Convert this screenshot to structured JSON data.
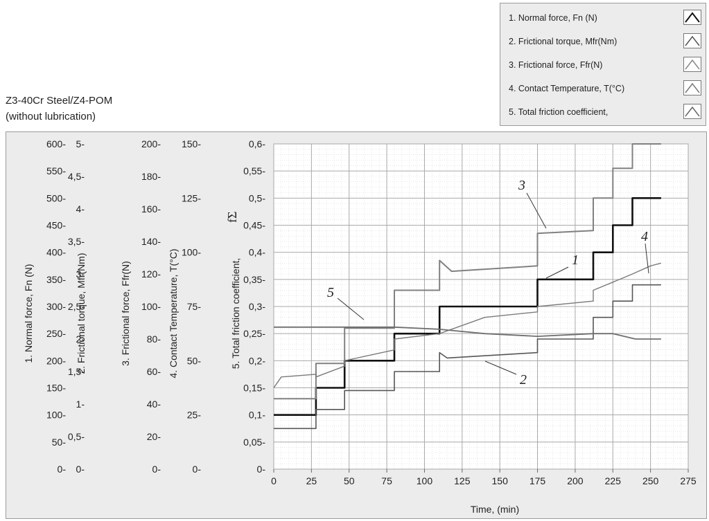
{
  "title_line1": "Z3-40Cr Steel/Z4-POM",
  "title_line2": "(without lubrication)",
  "legend": [
    {
      "label": "1. Normal force, Fn (N)",
      "color": "#111111"
    },
    {
      "label": "2. Frictional torque,  Mfr(Nm)",
      "color": "#555555"
    },
    {
      "label": "3. Frictional force,  Ffr(N)",
      "color": "#808080"
    },
    {
      "label": "4. Contact Temperature, T(°C)",
      "color": "#7a7a7a"
    },
    {
      "label": "5. Total friction coefficient,",
      "color": "#6e6e6e"
    }
  ],
  "chart_data": {
    "type": "line",
    "xlabel": "Time,  (min)",
    "xlim": [
      0,
      275
    ],
    "xticks": [
      "0",
      "25",
      "50",
      "75",
      "100",
      "125",
      "150",
      "175",
      "200",
      "225",
      "250",
      "275"
    ],
    "grid": true,
    "legend_position": "top-right",
    "y_axes": [
      {
        "label": "1. Normal force, Fn (N)",
        "ylim": [
          0,
          600
        ],
        "ticks": [
          "600",
          "550",
          "500",
          "450",
          "400",
          "350",
          "300",
          "250",
          "200",
          "150",
          "100",
          "50",
          "0"
        ]
      },
      {
        "label": "2. Frictional torque,  Mfr(Nm)",
        "ylim": [
          0,
          5
        ],
        "ticks": [
          "5",
          "4,5",
          "4",
          "3,5",
          "3",
          "2,5",
          "2",
          "1,5",
          "1",
          "0,5",
          "0"
        ]
      },
      {
        "label": "3. Frictional force,  Ffr(N)",
        "ylim": [
          0,
          200
        ],
        "ticks": [
          "200",
          "180",
          "160",
          "140",
          "120",
          "100",
          "80",
          "60",
          "40",
          "20",
          "0"
        ]
      },
      {
        "label": "4. Contact Temperature, T(°C)",
        "ylim": [
          0,
          150
        ],
        "ticks": [
          "150",
          "125",
          "100",
          "75",
          "50",
          "25",
          "0"
        ]
      },
      {
        "label": "5. Total friction coefficient,",
        "symbol": "fΣ",
        "ylim": [
          0,
          0.6
        ],
        "ticks": [
          "0,6",
          "0,55",
          "0,5",
          "0,45",
          "0,4",
          "0,35",
          "0,3",
          "0,25",
          "0,2",
          "0,15",
          "0,1",
          "0,05",
          "0"
        ]
      }
    ],
    "series": [
      {
        "name": "1. Normal force, Fn (N)",
        "color": "#111111",
        "unit_axis": 4,
        "x": [
          0,
          28,
          28,
          47,
          47,
          80,
          80,
          110,
          110,
          175,
          175,
          212,
          212,
          225,
          225,
          238,
          238,
          257
        ],
        "y": [
          0.1,
          0.1,
          0.15,
          0.15,
          0.2,
          0.2,
          0.25,
          0.25,
          0.3,
          0.3,
          0.35,
          0.35,
          0.4,
          0.4,
          0.45,
          0.45,
          0.5,
          0.5
        ]
      },
      {
        "name": "2. Frictional torque,  Mfr(Nm)",
        "color": "#555555",
        "unit_axis": 4,
        "x": [
          0,
          28,
          28,
          47,
          47,
          80,
          80,
          110,
          110,
          115,
          175,
          175,
          212,
          212,
          225,
          225,
          238,
          238,
          257
        ],
        "y": [
          0.075,
          0.075,
          0.11,
          0.11,
          0.145,
          0.145,
          0.18,
          0.18,
          0.215,
          0.205,
          0.215,
          0.24,
          0.24,
          0.28,
          0.28,
          0.31,
          0.31,
          0.34,
          0.34
        ]
      },
      {
        "name": "3. Frictional force,  Ffr(N)",
        "color": "#808080",
        "unit_axis": 4,
        "x": [
          0,
          28,
          28,
          47,
          47,
          80,
          80,
          110,
          110,
          118,
          175,
          175,
          212,
          212,
          225,
          225,
          238,
          238,
          257
        ],
        "y": [
          0.13,
          0.13,
          0.195,
          0.195,
          0.26,
          0.26,
          0.33,
          0.33,
          0.385,
          0.365,
          0.375,
          0.435,
          0.44,
          0.5,
          0.5,
          0.555,
          0.555,
          0.6,
          0.6
        ]
      },
      {
        "name": "4. Contact Temperature, T(°C)",
        "color": "#7a7a7a",
        "unit_axis": 4,
        "x": [
          0,
          5,
          28,
          28,
          47,
          47,
          80,
          80,
          110,
          110,
          140,
          175,
          175,
          212,
          212,
          225,
          238,
          250,
          257
        ],
        "y": [
          0.15,
          0.17,
          0.175,
          0.17,
          0.19,
          0.2,
          0.22,
          0.24,
          0.25,
          0.25,
          0.28,
          0.29,
          0.3,
          0.31,
          0.33,
          0.345,
          0.36,
          0.375,
          0.38
        ]
      },
      {
        "name": "5. Total friction coefficient,",
        "color": "#6e6e6e",
        "unit_axis": 4,
        "x": [
          0,
          28,
          47,
          80,
          110,
          140,
          175,
          212,
          225,
          240,
          257
        ],
        "y": [
          0.262,
          0.262,
          0.262,
          0.262,
          0.258,
          0.25,
          0.245,
          0.25,
          0.25,
          0.24,
          0.24
        ]
      }
    ],
    "annotations": [
      "1",
      "2",
      "3",
      "4",
      "5"
    ]
  }
}
